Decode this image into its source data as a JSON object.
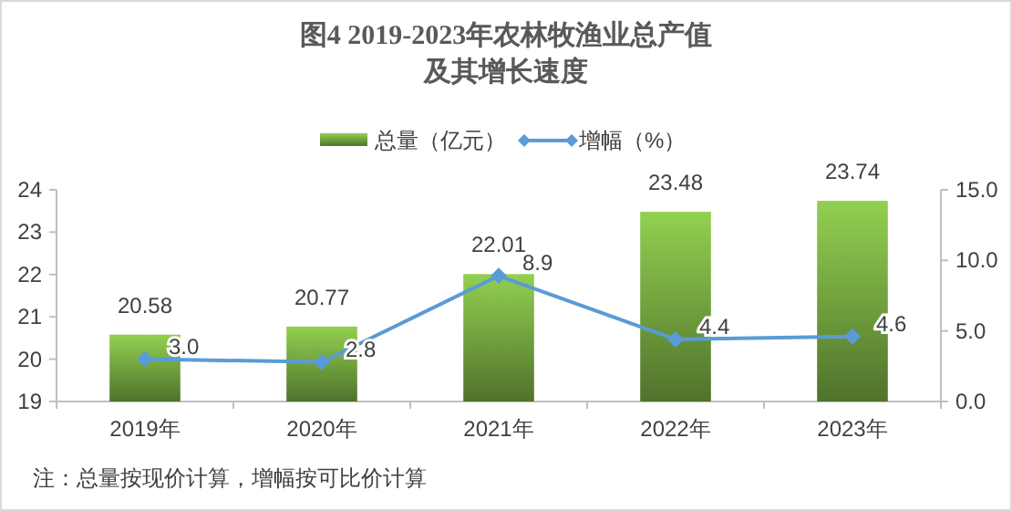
{
  "chart_data": {
    "type": "bar",
    "title": "图4 2019-2023年农林牧渔业总产值及其增长速度",
    "categories": [
      "2019年",
      "2020年",
      "2021年",
      "2022年",
      "2023年"
    ],
    "series": [
      {
        "name": "总量（亿元）",
        "color": "#92d050",
        "values": [
          20.58,
          20.77,
          22.01,
          23.48,
          23.74
        ],
        "value_labels": [
          "20.58",
          "20.77",
          "22.01",
          "23.48",
          "23.74"
        ]
      },
      {
        "name": "增幅（%）",
        "type": "line",
        "axis": "y2",
        "color": "#5b9bd5",
        "marker": "diamond",
        "values": [
          3.0,
          2.8,
          8.9,
          4.4,
          4.6
        ],
        "value_labels": [
          "3.0",
          "2.8",
          "8.9",
          "4.4",
          "4.6"
        ]
      }
    ],
    "ylim": [
      19,
      24
    ],
    "yticks": [
      19,
      20,
      21,
      22,
      23,
      24
    ],
    "y2lim": [
      0,
      15
    ],
    "y2ticks": [
      {
        "value": 0,
        "label": "0.0"
      },
      {
        "value": 5,
        "label": "5.0"
      },
      {
        "value": 10,
        "label": "10.0"
      },
      {
        "value": 15,
        "label": "15.0"
      }
    ],
    "legend": "top",
    "grid": false,
    "annotations": [
      "注：总量按现价计算，增幅按可比价计算"
    ]
  }
}
